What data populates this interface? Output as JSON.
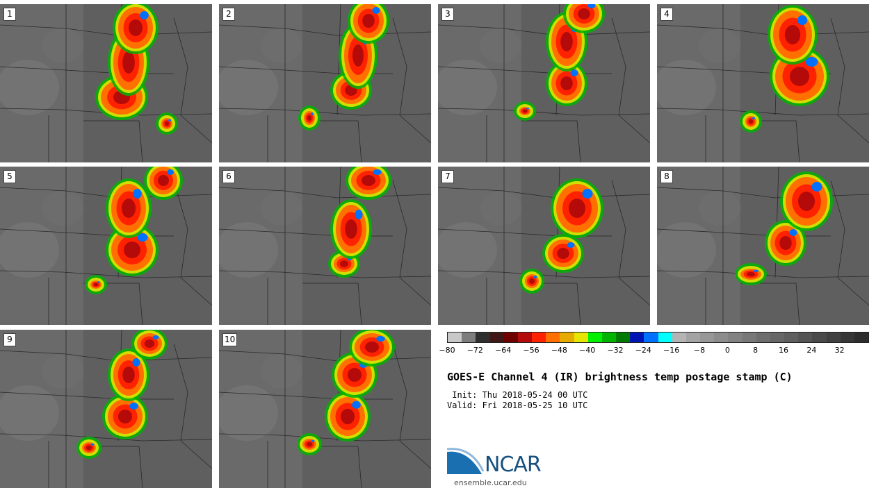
{
  "panels": [
    {
      "label": "1"
    },
    {
      "label": "2"
    },
    {
      "label": "3"
    },
    {
      "label": "4"
    },
    {
      "label": "5"
    },
    {
      "label": "6"
    },
    {
      "label": "7"
    },
    {
      "label": "8"
    },
    {
      "label": "9"
    },
    {
      "label": "10"
    }
  ],
  "colorbar": {
    "colors": [
      "#c8c8c8",
      "#7d7d7d",
      "#2e2e2e",
      "#3f1717",
      "#6e0000",
      "#b40a0a",
      "#ff2200",
      "#ff7000",
      "#e6aa00",
      "#e6e600",
      "#00f000",
      "#00b400",
      "#007a00",
      "#0014b4",
      "#0070ff",
      "#00ffff",
      "#b4b4b4",
      "#a3a3a3",
      "#979797",
      "#8c8c8c",
      "#828282",
      "#787878",
      "#6e6e6e",
      "#666666",
      "#5e5e5e",
      "#545454",
      "#4a4a4a",
      "#404040",
      "#363636",
      "#2c2c2c"
    ],
    "ticks": [
      "−80",
      "−72",
      "−64",
      "−56",
      "−48",
      "−40",
      "−32",
      "−24",
      "−16",
      "−8",
      "0",
      "8",
      "16",
      "24",
      "32"
    ]
  },
  "title": "GOES-E Channel 4 (IR) brightness temp postage stamp (C)",
  "init": " Init: Thu 2018-05-24 00 UTC",
  "valid": "Valid: Fri 2018-05-25 10 UTC",
  "logo": {
    "text": "NCAR",
    "url": "ensemble.ucar.edu",
    "color": "#16507f"
  }
}
